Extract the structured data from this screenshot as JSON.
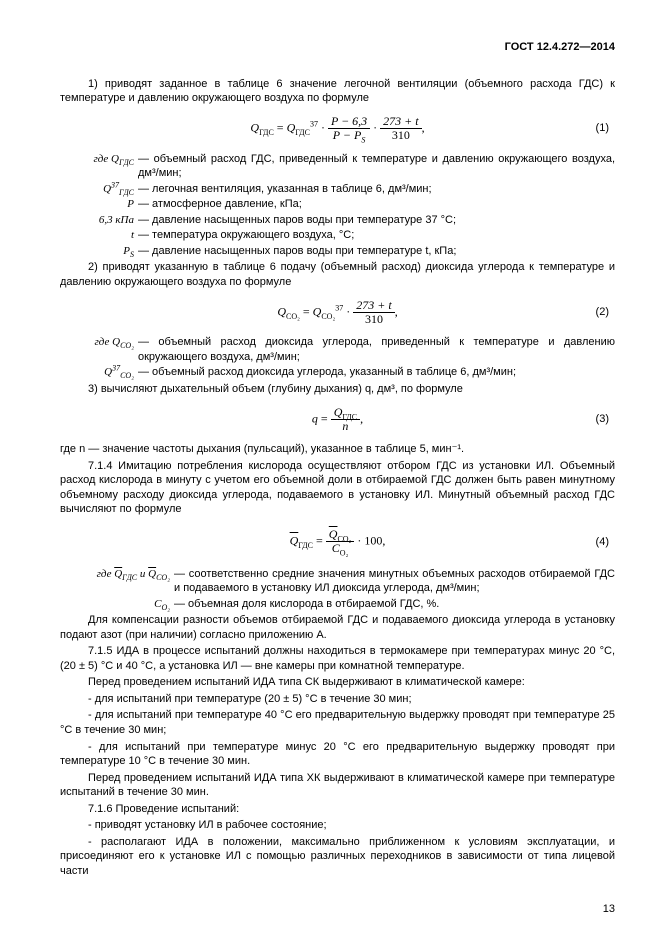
{
  "header": {
    "title": "ГОСТ 12.4.272—2014"
  },
  "p1": "1) приводят заданное в таблице 6 значение легочной вентиляции (объемного расхода ГДС) к температуре и давлению окружающего воздуха по формуле",
  "eq1": {
    "lhs": "Q",
    "lhs_sub": "ГДС",
    "rhs_a": "Q",
    "rhs_a_sub": "ГДС",
    "rhs_a_sup": "37",
    "num1": "P − 6,3",
    "den1_a": "P − P",
    "den1_s": "S",
    "num2": "273 + t",
    "den2": "310",
    "tail": ",",
    "no": "(1)"
  },
  "def1": [
    {
      "k": "где Q<sub>ГДС</sub>",
      "v": "— объемный расход ГДС, приведенный к температуре и давлению окружающего воздуха, дм³/мин;"
    },
    {
      "k": "Q<sup>37</sup><sub>ГДС</sub>",
      "v": "— легочная вентиляция, указанная в таблице 6, дм³/мин;"
    },
    {
      "k": "P",
      "v": "— атмосферное давление, кПа;"
    },
    {
      "k": "6,3 кПа",
      "v": "— давление насыщенных паров воды при температуре 37 °С;"
    },
    {
      "k": "t",
      "v": "— температура окружающего воздуха, °С;"
    },
    {
      "k": "P<sub>S</sub>",
      "v": "— давление насыщенных паров воды при температуре t, кПа;"
    }
  ],
  "p2": "2) приводят указанную в таблице 6 подачу (объемный расход) диоксида углерода к температуре и давлению окружающего воздуха по формуле",
  "eq2": {
    "lhs": "Q",
    "lhs_sub": "CO₂",
    "rhs": "Q",
    "rhs_sub": "CO₂",
    "rhs_sup": "37",
    "num": "273 + t",
    "den": "310",
    "tail": ",",
    "no": "(2)"
  },
  "def2": [
    {
      "k": "где Q<sub>CO₂</sub>",
      "v": "— объемный расход диоксида углерода, приведенный к температуре и давлению окружающего воздуха, дм³/мин;"
    },
    {
      "k": "Q<sup>37</sup><sub>CO₂</sub>",
      "v": "— объемный расход диоксида углерода, указанный в таблице 6, дм³/мин;"
    }
  ],
  "p3": "3) вычисляют дыхательный объем (глубину дыхания) q, дм³, по формуле",
  "eq3": {
    "lhs": "q",
    "num": "Q",
    "num_sub": "ГДС",
    "den": "n",
    "tail": ",",
    "no": "(3)"
  },
  "p4": "где n — значение частоты дыхания (пульсаций), указанное в таблице 5, мин⁻¹.",
  "p5": "7.1.4 Имитацию потребления кислорода осуществляют отбором ГДС из установки ИЛ. Объемный расход кислорода в минуту с учетом его объемной доли в отбираемой ГДС должен быть равен минутному объемному расходу диоксида углерода, подаваемого в установку ИЛ. Минутный объемный расход ГДС вычисляют по формуле",
  "eq4": {
    "lhs": "Q",
    "lhs_sub": "ГДС",
    "num": "Q",
    "num_sub": "CO₂",
    "den": "C",
    "den_sub": "O₂",
    "factor": "· 100,",
    "no": "(4)"
  },
  "def4a": "где <span class=\"sym\"><span class=\"bar\">Q</span><sub>ГДС</sub></span> и <span class=\"sym\"><span class=\"bar\">Q</span><sub>CO₂</sub></span>",
  "def4a_v": "— соответственно средние значения минутных объемных расходов отбираемой ГДС и подаваемого в установку ИЛ диоксида углерода, дм³/мин;",
  "def4b": "<span class=\"sym\">С<sub>O₂</sub></span>",
  "def4b_v": "— объемная доля кислорода в отбираемой ГДС, %.",
  "p6": "Для компенсации разности объемов отбираемой ГДС и подаваемого диоксида углерода в установку подают азот (при наличии) согласно приложению А.",
  "p7": "7.1.5 ИДА в процессе испытаний должны находиться в термокамере при температурах минус 20 °С, (20 ± 5) °С и 40 °С, а установка ИЛ — вне камеры при комнатной температуре.",
  "p8": "Перед проведением испытаний ИДА типа СК выдерживают в климатической камере:",
  "b1": "- для испытаний при температуре (20 ± 5) °С в течение 30 мин;",
  "b2": "- для испытаний при температуре 40 °С его предварительную выдержку проводят при температуре 25 °С в течение 30 мин;",
  "b3": "- для испытаний при температуре минус 20 °С его предварительную выдержку проводят при температуре 10 °С в течение 30 мин.",
  "p9": "Перед проведением испытаний ИДА типа ХК выдерживают в климатической камере при температуре испытаний в течение 30 мин.",
  "p10": "7.1.6 Проведение испытаний:",
  "b4": "- приводят установку ИЛ в рабочее состояние;",
  "b5": "- располагают ИДА в положении, максимально приближенном к условиям эксплуатации, и присоединяют его к установке ИЛ с помощью различных переходников в зависимости от типа лицевой части",
  "pagenum": "13"
}
